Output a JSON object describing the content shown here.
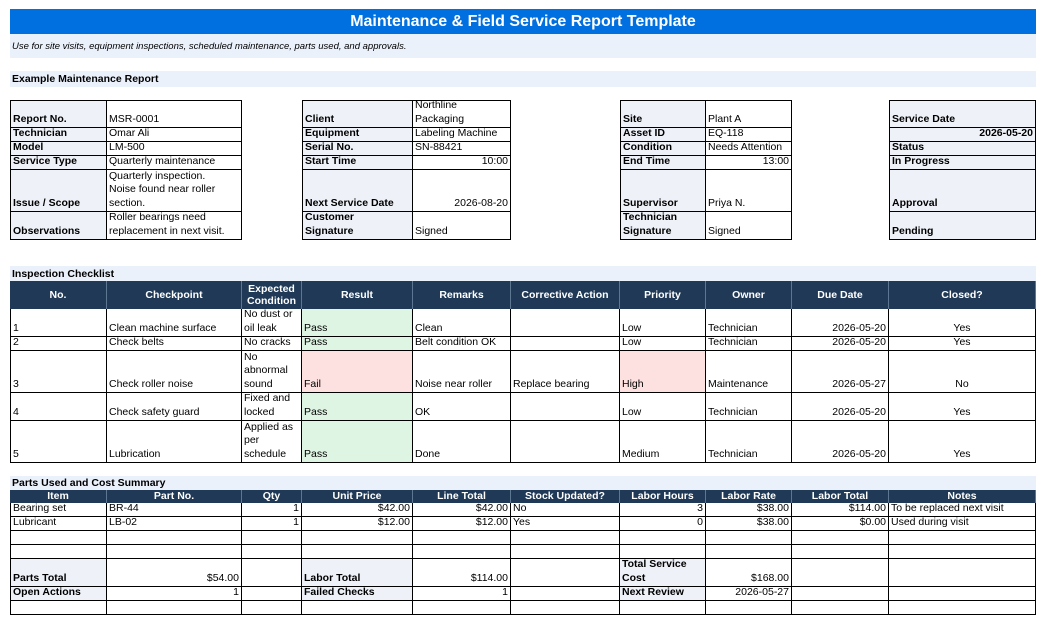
{
  "title": "Maintenance & Field Service Report Template",
  "subtitle": "Use for site visits, equipment inspections, scheduled maintenance, parts used, and approvals.",
  "report": {
    "section_title": "Example Maintenance Report",
    "report_no_label": "Report No.",
    "report_no": "MSR-0001",
    "technician_label": "Technician",
    "technician": "Omar Ali",
    "model_label": "Model",
    "model": "LM-500",
    "service_type_label": "Service Type",
    "service_type": "Quarterly maintenance",
    "issue_label": "Issue / Scope",
    "issue": [
      "Quarterly inspection.",
      "Noise found near roller",
      "section."
    ],
    "observations_label": "Observations",
    "observations": [
      "Roller bearings need",
      "replacement in next visit."
    ],
    "client_label": "Client",
    "client": [
      "Northline",
      "Packaging"
    ],
    "equipment_label": "Equipment",
    "equipment": "Labeling Machine",
    "serial_label": "Serial No.",
    "serial": "SN-88421",
    "start_label": "Start Time",
    "start": "10:00",
    "next_service_label": "Next Service Date",
    "next_service": "2026-08-20",
    "customer_sig_label": [
      "Customer",
      "Signature"
    ],
    "customer_sig": "Signed",
    "site_label": "Site",
    "site": "Plant A",
    "asset_label": "Asset ID",
    "asset": "EQ-118",
    "condition_label": "Condition",
    "condition": "Needs Attention",
    "end_label": "End Time",
    "end": "13:00",
    "supervisor_label": "Supervisor",
    "supervisor": "Priya N.",
    "tech_sig_label": [
      "Technician",
      "Signature"
    ],
    "tech_sig": "Signed",
    "service_date_label": "Service Date",
    "service_date": "2026-05-20",
    "status_label": "Status",
    "status": "In Progress",
    "approval_label": "Approval",
    "approval": "Pending"
  },
  "checklist": {
    "section_title": "Inspection Checklist",
    "headers": [
      "No.",
      "Checkpoint",
      "Expected Condition",
      "Result",
      "Remarks",
      "Corrective Action",
      "Priority",
      "Owner",
      "Due Date",
      "Closed?"
    ],
    "rows": [
      {
        "no": "1",
        "checkpoint": "Clean machine surface",
        "expected": [
          "No dust or",
          "oil leak"
        ],
        "result": "Pass",
        "remarks": "Clean",
        "action": "",
        "priority": "Low",
        "owner": "Technician",
        "due": "2026-05-20",
        "closed": "Yes"
      },
      {
        "no": "2",
        "checkpoint": "Check belts",
        "expected": [
          "No cracks"
        ],
        "result": "Pass",
        "remarks": "Belt condition OK",
        "action": "",
        "priority": "Low",
        "owner": "Technician",
        "due": "2026-05-20",
        "closed": "Yes"
      },
      {
        "no": "3",
        "checkpoint": "Check roller noise",
        "expected": [
          "No",
          "abnormal",
          "sound"
        ],
        "result": "Fail",
        "remarks": "Noise near roller",
        "action": "Replace bearing",
        "priority": "High",
        "owner": "Maintenance",
        "due": "2026-05-27",
        "closed": "No"
      },
      {
        "no": "4",
        "checkpoint": "Check safety guard",
        "expected": [
          "Fixed and",
          "locked"
        ],
        "result": "Pass",
        "remarks": "OK",
        "action": "",
        "priority": "Low",
        "owner": "Technician",
        "due": "2026-05-20",
        "closed": "Yes"
      },
      {
        "no": "5",
        "checkpoint": "Lubrication",
        "expected": [
          "Applied as",
          "per",
          "schedule"
        ],
        "result": "Pass",
        "remarks": "Done",
        "action": "",
        "priority": "Medium",
        "owner": "Technician",
        "due": "2026-05-20",
        "closed": "Yes"
      }
    ]
  },
  "parts": {
    "section_title": "Parts Used and Cost Summary",
    "headers": [
      "Item",
      "Part No.",
      "Qty",
      "Unit Price",
      "Line Total",
      "Stock Updated?",
      "Labor Hours",
      "Labor Rate",
      "Labor Total",
      "Notes"
    ],
    "rows": [
      {
        "item": "Bearing set",
        "part": "BR-44",
        "qty": "1",
        "unit": "$42.00",
        "line": "$42.00",
        "stock": "No",
        "hours": "3",
        "rate": "$38.00",
        "labor": "$114.00",
        "notes": "To be replaced next visit"
      },
      {
        "item": "Lubricant",
        "part": "LB-02",
        "qty": "1",
        "unit": "$12.00",
        "line": "$12.00",
        "stock": "Yes",
        "hours": "0",
        "rate": "$38.00",
        "labor": "$0.00",
        "notes": "Used during visit"
      }
    ],
    "parts_total_label": "Parts Total",
    "parts_total": "$54.00",
    "labor_total_label": "Labor Total",
    "labor_total": "$114.00",
    "service_cost_label": [
      "Total Service",
      "Cost"
    ],
    "service_cost": "$168.00",
    "open_actions_label": "Open Actions",
    "open_actions": "1",
    "failed_label": "Failed Checks",
    "failed": "1",
    "next_review_label": "Next Review",
    "next_review": "2026-05-27"
  },
  "colors": {
    "title_bg": "#0070e0",
    "header_bg": "#1f3956",
    "pass_bg": "#dff5e3",
    "fail_bg": "#fde0e0",
    "band_bg": "#ebf1fb"
  }
}
